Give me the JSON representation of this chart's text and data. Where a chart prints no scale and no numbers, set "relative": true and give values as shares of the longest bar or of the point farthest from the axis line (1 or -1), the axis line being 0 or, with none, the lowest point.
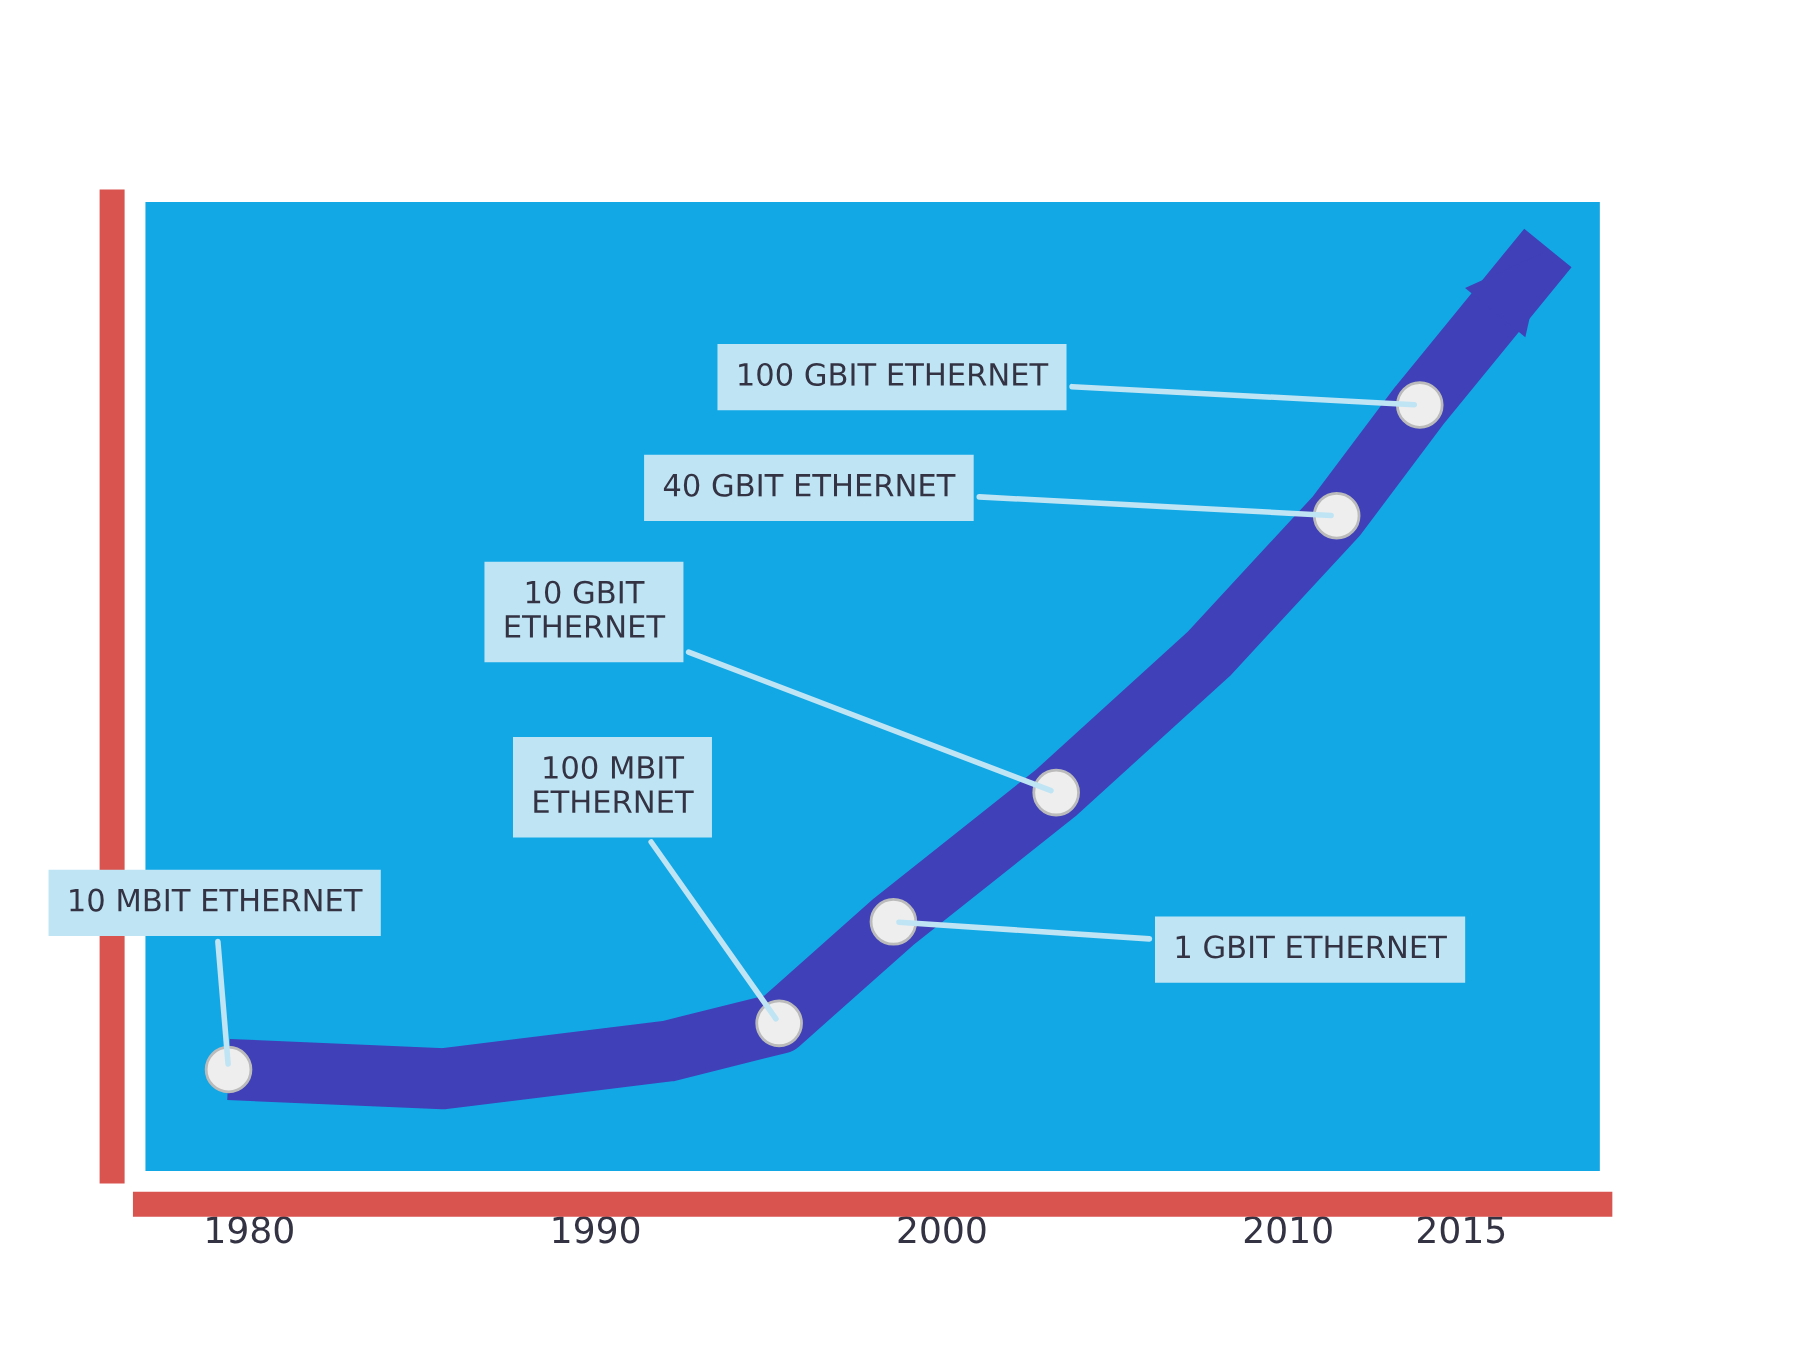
{
  "chart_data": {
    "type": "line",
    "relative": true,
    "xlim": [
      1977,
      2019
    ],
    "xticks": [
      1980,
      1990,
      2000,
      2010,
      2015
    ],
    "tick_labels": "x",
    "grid": false,
    "series": [
      {
        "type": "line",
        "color": "#4040b8",
        "marker": "none",
        "line_style": "solid",
        "x": [
          1979.4,
          1985.6,
          1992.1,
          1995.3,
          1998.6,
          2003.3,
          2007.7,
          2011.4,
          2013.8,
          2017.5
        ],
        "values": [
          0.11,
          0.1,
          0.13,
          0.16,
          0.27,
          0.41,
          0.56,
          0.71,
          0.83,
          1.0
        ]
      },
      {
        "type": "scatter",
        "color": "#eeeeee",
        "marker": "circle",
        "x": [
          1979.4,
          1995.3,
          1998.6,
          2003.3,
          2011.4,
          2013.8
        ],
        "values": [
          0.11,
          0.16,
          0.27,
          0.41,
          0.71,
          0.83
        ]
      }
    ],
    "annotations": [
      {
        "text": "10 MBIT ETHERNET",
        "x": 1979.4,
        "y": 0.11
      },
      {
        "text": "100 MBIT\nETHERNET",
        "x": 1995.3,
        "y": 0.16
      },
      {
        "text": "1 GBIT ETHERNET",
        "x": 1998.6,
        "y": 0.27
      },
      {
        "text": "10 GBIT\nETHERNET",
        "x": 2003.3,
        "y": 0.41
      },
      {
        "text": "40 GBIT ETHERNET",
        "x": 2011.4,
        "y": 0.71
      },
      {
        "text": "100 GBIT ETHERNET",
        "x": 2013.8,
        "y": 0.83
      }
    ]
  }
}
